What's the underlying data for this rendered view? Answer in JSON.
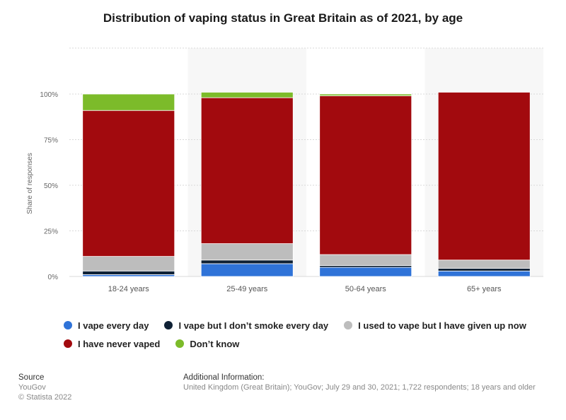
{
  "chart_data": {
    "type": "bar",
    "stacked": true,
    "title": "Distribution of vaping status in Great Britain as of 2021, by age",
    "ylabel": "Share of responses",
    "ylim": [
      0,
      100
    ],
    "yticks": [
      "0%",
      "25%",
      "50%",
      "75%",
      "100%"
    ],
    "ytick_values": [
      0,
      25,
      50,
      75,
      100
    ],
    "categories": [
      "18-24 years",
      "25-49 years",
      "50-64 years",
      "65+ years"
    ],
    "series": [
      {
        "name": "I vape every day",
        "color": "#2f73d8",
        "values": [
          1,
          7,
          5,
          3
        ]
      },
      {
        "name": "I vape but I don’t smoke every day",
        "color": "#0f2135",
        "values": [
          2,
          2,
          1,
          1.5
        ]
      },
      {
        "name": "I used to vape but I have given up now",
        "color": "#bdbdbd",
        "values": [
          8,
          9,
          6,
          4.5
        ]
      },
      {
        "name": "I have never vaped",
        "color": "#a20a0e",
        "values": [
          80,
          80,
          87,
          92
        ]
      },
      {
        "name": "Don’t know",
        "color": "#7cbb2a",
        "values": [
          9,
          3,
          1,
          0
        ]
      }
    ],
    "legend_position": "bottom",
    "grid": true
  },
  "footer": {
    "source_heading": "Source",
    "source_lines": [
      "YouGov",
      "© Statista 2022"
    ],
    "info_heading": "Additional Information:",
    "info_text": "United Kingdom (Great Britain); YouGov; July 29 and 30, 2021; 1,722 respondents; 18 years and older"
  }
}
